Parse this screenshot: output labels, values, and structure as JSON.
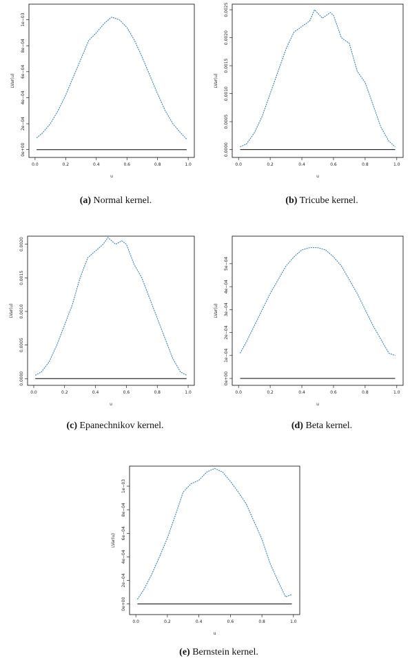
{
  "chart_data": [
    {
      "type": "line",
      "caption_label": "(a)",
      "caption": "Normal kernel.",
      "xlabel": "u",
      "ylabel": "LVar(u)",
      "x": [
        0.01,
        0.05,
        0.1,
        0.15,
        0.2,
        0.25,
        0.3,
        0.35,
        0.4,
        0.45,
        0.5,
        0.55,
        0.6,
        0.65,
        0.7,
        0.75,
        0.8,
        0.85,
        0.9,
        0.95,
        0.99
      ],
      "series": [
        {
          "color": "#3a7fa8",
          "linestyle": "dashed",
          "values": [
            9e-05,
            0.00013,
            0.0002,
            0.0003,
            0.00042,
            0.00056,
            0.0007,
            0.00084,
            0.0009,
            0.00097,
            0.00102,
            0.001,
            0.00094,
            0.00084,
            0.00071,
            0.00057,
            0.00043,
            0.0003,
            0.0002,
            0.00013,
            8e-05
          ]
        },
        {
          "color": "#000000",
          "linestyle": "solid",
          "values": [
            0,
            0,
            0,
            0,
            0,
            0,
            0,
            0,
            0,
            0,
            0,
            0,
            0,
            0,
            0,
            0,
            0,
            0,
            0,
            0,
            0
          ]
        }
      ],
      "xlim": [
        -0.04,
        1.04
      ],
      "ylim": [
        -6e-05,
        0.00112
      ],
      "xticks": [
        {
          "value": 0,
          "label": "0.0"
        },
        {
          "value": 0.2,
          "label": "0.2"
        },
        {
          "value": 0.4,
          "label": "0.4"
        },
        {
          "value": 0.6,
          "label": "0.6"
        },
        {
          "value": 0.8,
          "label": "0.8"
        },
        {
          "value": 1,
          "label": "1.0"
        }
      ],
      "yticks": [
        {
          "value": 0,
          "label": "0e+00"
        },
        {
          "value": 0.0002,
          "label": "2e−04"
        },
        {
          "value": 0.0004,
          "label": "4e−04"
        },
        {
          "value": 0.0006,
          "label": "6e−04"
        },
        {
          "value": 0.0008,
          "label": "8e−04"
        },
        {
          "value": 0.001,
          "label": "1e−03"
        }
      ]
    },
    {
      "type": "line",
      "caption_label": "(b)",
      "caption": "Tricube kernel.",
      "xlabel": "u",
      "ylabel": "LVar(u)",
      "x": [
        0.01,
        0.05,
        0.1,
        0.15,
        0.2,
        0.25,
        0.3,
        0.35,
        0.4,
        0.45,
        0.48,
        0.53,
        0.58,
        0.6,
        0.65,
        0.7,
        0.75,
        0.8,
        0.85,
        0.9,
        0.95,
        0.99
      ],
      "series": [
        {
          "color": "#3a7fa8",
          "linestyle": "dashed",
          "values": [
            5e-05,
            0.0001,
            0.0003,
            0.0006,
            0.001,
            0.0014,
            0.0018,
            0.0021,
            0.0022,
            0.0023,
            0.0025,
            0.00235,
            0.00245,
            0.0024,
            0.002,
            0.0019,
            0.0014,
            0.0012,
            0.0008,
            0.0004,
            0.00015,
            5e-05
          ]
        },
        {
          "color": "#000000",
          "linestyle": "solid",
          "values": [
            0,
            0,
            0,
            0,
            0,
            0,
            0,
            0,
            0,
            0,
            0,
            0,
            0,
            0,
            0,
            0,
            0,
            0,
            0,
            0,
            0,
            0
          ]
        }
      ],
      "xlim": [
        -0.04,
        1.04
      ],
      "ylim": [
        -0.00014,
        0.0026
      ],
      "xticks": [
        {
          "value": 0,
          "label": "0.0"
        },
        {
          "value": 0.2,
          "label": "0.2"
        },
        {
          "value": 0.4,
          "label": "0.4"
        },
        {
          "value": 0.6,
          "label": "0.6"
        },
        {
          "value": 0.8,
          "label": "0.8"
        },
        {
          "value": 1,
          "label": "1.0"
        }
      ],
      "yticks": [
        {
          "value": 0,
          "label": "0.0000"
        },
        {
          "value": 0.0005,
          "label": "0.0005"
        },
        {
          "value": 0.001,
          "label": "0.0010"
        },
        {
          "value": 0.0015,
          "label": "0.0015"
        },
        {
          "value": 0.002,
          "label": "0.0020"
        },
        {
          "value": 0.0025,
          "label": "0.0025"
        }
      ]
    },
    {
      "type": "line",
      "caption_label": "(c)",
      "caption": "Epanechnikov kernel.",
      "xlabel": "u",
      "ylabel": "LVar(u)",
      "x": [
        0.01,
        0.05,
        0.1,
        0.15,
        0.2,
        0.25,
        0.3,
        0.35,
        0.4,
        0.45,
        0.48,
        0.53,
        0.57,
        0.6,
        0.65,
        0.7,
        0.75,
        0.8,
        0.85,
        0.9,
        0.95,
        0.99
      ],
      "series": [
        {
          "color": "#3a7fa8",
          "linestyle": "dashed",
          "values": [
            5e-05,
            0.0001,
            0.00025,
            0.0005,
            0.0008,
            0.0011,
            0.0015,
            0.0018,
            0.0019,
            0.002,
            0.0021,
            0.002,
            0.00205,
            0.002,
            0.0017,
            0.0015,
            0.0012,
            0.0009,
            0.0006,
            0.0003,
            0.0001,
            5e-05
          ]
        },
        {
          "color": "#000000",
          "linestyle": "solid",
          "values": [
            0,
            0,
            0,
            0,
            0,
            0,
            0,
            0,
            0,
            0,
            0,
            0,
            0,
            0,
            0,
            0,
            0,
            0,
            0,
            0,
            0,
            0
          ]
        }
      ],
      "xlim": [
        -0.04,
        1.04
      ],
      "ylim": [
        -0.0001,
        0.00212
      ],
      "xticks": [
        {
          "value": 0,
          "label": "0.0"
        },
        {
          "value": 0.2,
          "label": "0.2"
        },
        {
          "value": 0.4,
          "label": "0.4"
        },
        {
          "value": 0.6,
          "label": "0.6"
        },
        {
          "value": 0.8,
          "label": "0.8"
        },
        {
          "value": 1,
          "label": "1.0"
        }
      ],
      "yticks": [
        {
          "value": 0,
          "label": "0.0000"
        },
        {
          "value": 0.0005,
          "label": "0.0005"
        },
        {
          "value": 0.001,
          "label": "0.0010"
        },
        {
          "value": 0.0015,
          "label": "0.0015"
        },
        {
          "value": 0.002,
          "label": "0.0020"
        }
      ]
    },
    {
      "type": "line",
      "caption_label": "(d)",
      "caption": "Beta kernel.",
      "xlabel": "u",
      "ylabel": "LVar(u)",
      "x": [
        0.01,
        0.05,
        0.1,
        0.15,
        0.2,
        0.25,
        0.3,
        0.35,
        0.4,
        0.45,
        0.5,
        0.55,
        0.6,
        0.65,
        0.7,
        0.75,
        0.8,
        0.85,
        0.9,
        0.95,
        0.99
      ],
      "series": [
        {
          "color": "#3a7fa8",
          "linestyle": "dashed",
          "values": [
            0.00011,
            0.00016,
            0.00023,
            0.0003,
            0.00037,
            0.00043,
            0.00049,
            0.00053,
            0.00056,
            0.00057,
            0.00057,
            0.00056,
            0.00053,
            0.00049,
            0.00043,
            0.00037,
            0.0003,
            0.00023,
            0.00017,
            0.00011,
            0.0001
          ]
        },
        {
          "color": "#000000",
          "linestyle": "solid",
          "values": [
            0,
            0,
            0,
            0,
            0,
            0,
            0,
            0,
            0,
            0,
            0,
            0,
            0,
            0,
            0,
            0,
            0,
            0,
            0,
            0,
            0
          ]
        }
      ],
      "xlim": [
        -0.04,
        1.04
      ],
      "ylim": [
        -3e-05,
        0.00062
      ],
      "xticks": [
        {
          "value": 0,
          "label": "0.0"
        },
        {
          "value": 0.2,
          "label": "0.2"
        },
        {
          "value": 0.4,
          "label": "0.4"
        },
        {
          "value": 0.6,
          "label": "0.6"
        },
        {
          "value": 0.8,
          "label": "0.8"
        },
        {
          "value": 1,
          "label": "1.0"
        }
      ],
      "yticks": [
        {
          "value": 0,
          "label": "0e+00"
        },
        {
          "value": 0.0001,
          "label": "1e−04"
        },
        {
          "value": 0.0002,
          "label": "2e−04"
        },
        {
          "value": 0.0003,
          "label": "3e−04"
        },
        {
          "value": 0.0004,
          "label": "4e−04"
        },
        {
          "value": 0.0005,
          "label": "5e−04"
        }
      ]
    },
    {
      "type": "line",
      "caption_label": "(e)",
      "caption": "Bernstein kernel.",
      "xlabel": "u",
      "ylabel": "LVar(u)",
      "x": [
        0.01,
        0.05,
        0.1,
        0.15,
        0.2,
        0.25,
        0.3,
        0.35,
        0.4,
        0.45,
        0.5,
        0.55,
        0.6,
        0.65,
        0.7,
        0.75,
        0.8,
        0.85,
        0.9,
        0.95,
        0.99
      ],
      "series": [
        {
          "color": "#3a7fa8",
          "linestyle": "dashed",
          "values": [
            4e-05,
            0.00012,
            0.00025,
            0.0004,
            0.00056,
            0.00075,
            0.00095,
            0.00102,
            0.00105,
            0.00112,
            0.00115,
            0.00112,
            0.00104,
            0.00095,
            0.00085,
            0.0007,
            0.00055,
            0.00035,
            0.0002,
            6e-05,
            8e-05
          ]
        },
        {
          "color": "#000000",
          "linestyle": "solid",
          "values": [
            0,
            0,
            0,
            0,
            0,
            0,
            0,
            0,
            0,
            0,
            0,
            0,
            0,
            0,
            0,
            0,
            0,
            0,
            0,
            0,
            0
          ]
        }
      ],
      "xlim": [
        -0.04,
        1.04
      ],
      "ylim": [
        -9e-05,
        0.00117
      ],
      "xticks": [
        {
          "value": 0,
          "label": "0.0"
        },
        {
          "value": 0.2,
          "label": "0.2"
        },
        {
          "value": 0.4,
          "label": "0.4"
        },
        {
          "value": 0.6,
          "label": "0.6"
        },
        {
          "value": 0.8,
          "label": "0.8"
        },
        {
          "value": 1,
          "label": "1.0"
        }
      ],
      "yticks": [
        {
          "value": 0,
          "label": "0e+00"
        },
        {
          "value": 0.0002,
          "label": "2e−04"
        },
        {
          "value": 0.0004,
          "label": "4e−04"
        },
        {
          "value": 0.0006,
          "label": "6e−04"
        },
        {
          "value": 0.0008,
          "label": "8e−04"
        },
        {
          "value": 0.001,
          "label": "1e−03"
        }
      ]
    }
  ]
}
